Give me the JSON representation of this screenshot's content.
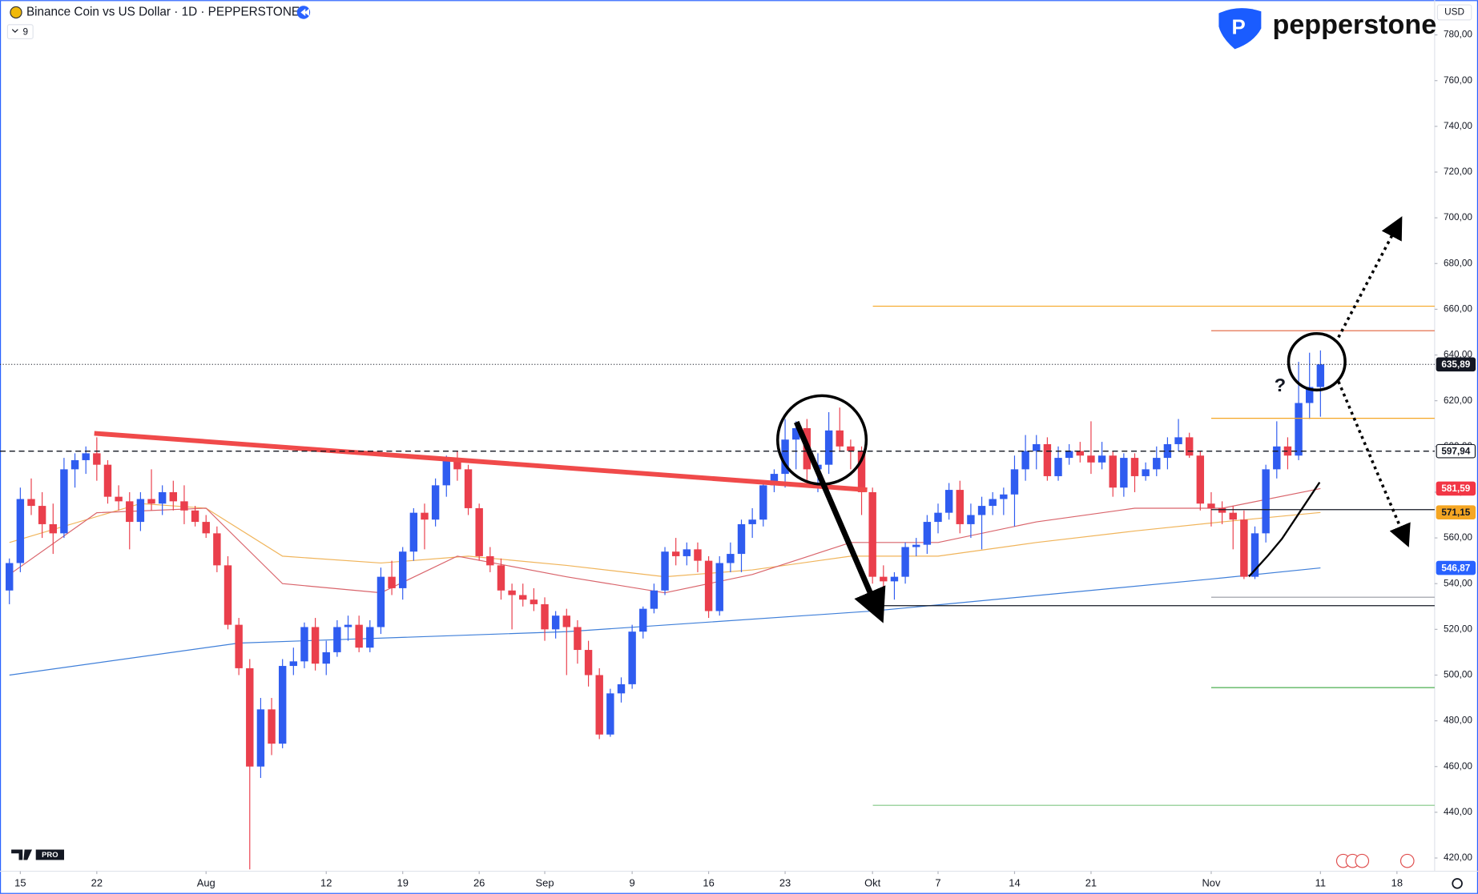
{
  "chart_data": {
    "type": "candlestick",
    "title": "Binance Coin vs US Dollar · 1D · PEPPERSTONE",
    "indicator_count": 9,
    "currency": "USD",
    "brand": "pepperstone",
    "badge": "PRO",
    "annotation": "?",
    "up_color": "#2f5cf0",
    "down_color": "#ea3f4c",
    "xlim": [
      -0.86,
      130.45
    ],
    "ylim": [
      414.2,
      795.2
    ],
    "xticks": [
      {
        "value": 1,
        "label": "15"
      },
      {
        "value": 8,
        "label": "22"
      },
      {
        "value": 18,
        "label": "Aug"
      },
      {
        "value": 29,
        "label": "12"
      },
      {
        "value": 36,
        "label": "19"
      },
      {
        "value": 43,
        "label": "26"
      },
      {
        "value": 49,
        "label": "Sep"
      },
      {
        "value": 57,
        "label": "9"
      },
      {
        "value": 64,
        "label": "16"
      },
      {
        "value": 71,
        "label": "23"
      },
      {
        "value": 79,
        "label": "Okt"
      },
      {
        "value": 85,
        "label": "7"
      },
      {
        "value": 92,
        "label": "14"
      },
      {
        "value": 99,
        "label": "21"
      },
      {
        "value": 110,
        "label": "Nov"
      },
      {
        "value": 120,
        "label": "11"
      },
      {
        "value": 127,
        "label": "18"
      }
    ],
    "yticks": [
      {
        "value": 420,
        "label": "420,00"
      },
      {
        "value": 440,
        "label": "440,00"
      },
      {
        "value": 460,
        "label": "460,00"
      },
      {
        "value": 480,
        "label": "480,00"
      },
      {
        "value": 500,
        "label": "500,00"
      },
      {
        "value": 520,
        "label": "520,00"
      },
      {
        "value": 540,
        "label": "540,00"
      },
      {
        "value": 560,
        "label": "560,00"
      },
      {
        "value": 580,
        "label": "580,00"
      },
      {
        "value": 600,
        "label": "600,00"
      },
      {
        "value": 620,
        "label": "620,00"
      },
      {
        "value": 640,
        "label": "640,00"
      },
      {
        "value": 660,
        "label": "660,00"
      },
      {
        "value": 680,
        "label": "680,00"
      },
      {
        "value": 700,
        "label": "700,00"
      },
      {
        "value": 720,
        "label": "720,00"
      },
      {
        "value": 740,
        "label": "740,00"
      },
      {
        "value": 760,
        "label": "760,00"
      },
      {
        "value": 780,
        "label": "780,00"
      }
    ],
    "candles": [
      [
        537,
        551,
        531,
        549
      ],
      [
        549,
        582,
        545,
        577
      ],
      [
        577,
        586,
        570,
        574
      ],
      [
        574,
        580,
        560,
        566
      ],
      [
        566,
        575,
        553,
        562
      ],
      [
        562,
        595,
        560,
        590
      ],
      [
        590,
        597,
        582,
        594
      ],
      [
        594,
        600,
        588,
        597
      ],
      [
        597,
        604,
        585,
        592
      ],
      [
        592,
        594,
        575,
        578
      ],
      [
        578,
        583,
        572,
        576
      ],
      [
        576,
        580,
        555,
        567
      ],
      [
        567,
        580,
        563,
        577
      ],
      [
        577,
        590,
        572,
        575
      ],
      [
        575,
        583,
        570,
        580
      ],
      [
        580,
        585,
        572,
        576
      ],
      [
        576,
        583,
        566,
        572
      ],
      [
        572,
        574,
        565,
        567
      ],
      [
        567,
        570,
        560,
        562
      ],
      [
        562,
        565,
        545,
        548
      ],
      [
        548,
        552,
        520,
        522
      ],
      [
        522,
        525,
        500,
        503
      ],
      [
        503,
        507,
        415,
        460
      ],
      [
        460,
        490,
        455,
        485
      ],
      [
        485,
        490,
        465,
        470
      ],
      [
        470,
        507,
        468,
        504
      ],
      [
        504,
        512,
        500,
        506
      ],
      [
        506,
        523,
        503,
        521
      ],
      [
        521,
        525,
        502,
        505
      ],
      [
        505,
        515,
        500,
        510
      ],
      [
        510,
        524,
        508,
        521
      ],
      [
        521,
        526,
        515,
        522
      ],
      [
        522,
        526,
        510,
        512
      ],
      [
        512,
        524,
        510,
        521
      ],
      [
        521,
        547,
        518,
        543
      ],
      [
        543,
        550,
        535,
        538
      ],
      [
        538,
        556,
        533,
        554
      ],
      [
        554,
        573,
        550,
        571
      ],
      [
        571,
        575,
        555,
        568
      ],
      [
        568,
        586,
        565,
        583
      ],
      [
        583,
        596,
        578,
        594
      ],
      [
        594,
        598,
        585,
        590
      ],
      [
        590,
        592,
        570,
        573
      ],
      [
        573,
        575,
        550,
        552
      ],
      [
        552,
        556,
        545,
        548
      ],
      [
        548,
        551,
        533,
        537
      ],
      [
        537,
        540,
        520,
        535
      ],
      [
        535,
        540,
        530,
        533
      ],
      [
        533,
        538,
        528,
        531
      ],
      [
        531,
        534,
        515,
        520
      ],
      [
        520,
        528,
        516,
        526
      ],
      [
        526,
        529,
        500,
        521
      ],
      [
        521,
        524,
        505,
        511
      ],
      [
        511,
        515,
        495,
        500
      ],
      [
        500,
        503,
        472,
        474
      ],
      [
        474,
        494,
        473,
        492
      ],
      [
        492,
        499,
        488,
        496
      ],
      [
        496,
        522,
        494,
        519
      ],
      [
        519,
        530,
        516,
        529
      ],
      [
        529,
        540,
        527,
        537
      ],
      [
        537,
        556,
        535,
        554
      ],
      [
        554,
        560,
        548,
        552
      ],
      [
        552,
        558,
        548,
        555
      ],
      [
        555,
        558,
        545,
        550
      ],
      [
        550,
        552,
        525,
        528
      ],
      [
        528,
        552,
        526,
        549
      ],
      [
        549,
        558,
        545,
        553
      ],
      [
        553,
        568,
        545,
        566
      ],
      [
        566,
        573,
        560,
        568
      ],
      [
        568,
        585,
        565,
        583
      ],
      [
        583,
        590,
        580,
        588
      ],
      [
        588,
        612,
        582,
        603
      ],
      [
        603,
        611,
        590,
        608
      ],
      [
        608,
        612,
        585,
        590
      ],
      [
        590,
        597,
        580,
        592
      ],
      [
        592,
        615,
        588,
        607
      ],
      [
        607,
        617,
        598,
        600
      ],
      [
        600,
        603,
        590,
        598
      ],
      [
        598,
        600,
        570,
        580
      ],
      [
        580,
        582,
        540,
        543
      ],
      [
        543,
        548,
        535,
        541
      ],
      [
        541,
        545,
        533,
        543
      ],
      [
        543,
        558,
        540,
        556
      ],
      [
        556,
        560,
        552,
        557
      ],
      [
        557,
        570,
        553,
        567
      ],
      [
        567,
        575,
        562,
        571
      ],
      [
        571,
        584,
        568,
        581
      ],
      [
        581,
        585,
        562,
        566
      ],
      [
        566,
        575,
        560,
        570
      ],
      [
        570,
        578,
        555,
        574
      ],
      [
        574,
        580,
        570,
        577
      ],
      [
        577,
        582,
        570,
        579
      ],
      [
        579,
        596,
        565,
        590
      ],
      [
        590,
        605,
        585,
        598
      ],
      [
        598,
        605,
        590,
        601
      ],
      [
        601,
        604,
        585,
        587
      ],
      [
        587,
        600,
        585,
        595
      ],
      [
        595,
        601,
        592,
        598
      ],
      [
        598,
        602,
        593,
        596
      ],
      [
        596,
        611,
        588,
        593
      ],
      [
        593,
        602,
        590,
        596
      ],
      [
        596,
        598,
        578,
        582
      ],
      [
        582,
        597,
        578,
        595
      ],
      [
        595,
        597,
        580,
        587
      ],
      [
        587,
        593,
        585,
        590
      ],
      [
        590,
        600,
        587,
        595
      ],
      [
        595,
        604,
        590,
        601
      ],
      [
        601,
        612,
        598,
        604
      ],
      [
        604,
        606,
        595,
        596
      ],
      [
        596,
        598,
        572,
        575
      ],
      [
        575,
        580,
        565,
        573
      ],
      [
        573,
        576,
        566,
        571
      ],
      [
        571,
        574,
        555,
        568
      ],
      [
        568,
        572,
        542,
        543
      ],
      [
        543,
        565,
        542,
        562
      ],
      [
        562,
        592,
        558,
        590
      ],
      [
        590,
        611,
        586,
        600
      ],
      [
        600,
        604,
        590,
        596
      ],
      [
        596,
        637,
        594,
        619
      ],
      [
        619,
        641,
        612,
        626
      ],
      [
        626,
        642,
        613,
        635.89
      ]
    ],
    "lines": [
      {
        "color": "#3f7fd9",
        "x": [
          0,
          21,
          51,
          79,
          110,
          120
        ],
        "values": [
          500,
          514,
          519,
          528,
          542,
          546.87
        ]
      },
      {
        "color": "#f0b45a",
        "x": [
          0,
          12,
          18,
          25,
          34,
          42,
          51,
          60,
          68,
          77,
          85,
          94,
          103,
          111,
          120
        ],
        "values": [
          558,
          575,
          573,
          552,
          549,
          552,
          548,
          543,
          546,
          552,
          552,
          558,
          563,
          567,
          571.15
        ]
      },
      {
        "color": "#d9646b",
        "x": [
          0,
          8,
          18,
          25,
          34,
          41,
          51,
          60,
          68,
          77,
          85,
          94,
          103,
          111,
          120
        ],
        "values": [
          544,
          571,
          573,
          540,
          536,
          552,
          543,
          536,
          544,
          558,
          558,
          567,
          573,
          573,
          581.59
        ]
      }
    ],
    "price_labels": [
      {
        "value": 635.89,
        "label": "635,89",
        "color": "#131722",
        "text_color": "#ffffff"
      },
      {
        "value": 597.94,
        "label": "597,94",
        "color": "#ffffff",
        "text_color": "#131722"
      },
      {
        "value": 581.59,
        "label": "581,59",
        "color": "#f23645",
        "text_color": "#ffffff"
      },
      {
        "value": 571.15,
        "label": "571,15",
        "color": "#f5a623",
        "text_color": "#131722"
      },
      {
        "value": 546.87,
        "label": "546,87",
        "color": "#2962ff",
        "text_color": "#ffffff"
      }
    ]
  }
}
